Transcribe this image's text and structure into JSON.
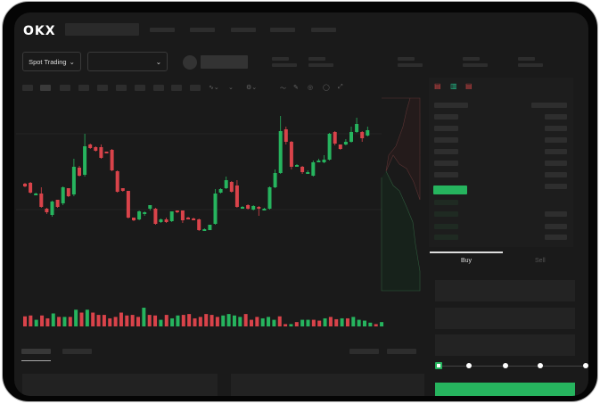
{
  "header": {
    "logo": "OKX"
  },
  "toolbar": {
    "market_select_label": "Spot Trading"
  },
  "trade_panel": {
    "tabs": [
      {
        "label": "Buy",
        "active": true
      },
      {
        "label": "Sell",
        "active": false
      }
    ],
    "leverage_steps": 5,
    "selected_step": 0
  },
  "colors": {
    "up": "#26b45e",
    "down": "#d9434a",
    "background": "#1a1a1a",
    "placeholder": "#2d2d2d"
  },
  "icons": [
    "chevron-down-icon",
    "depth-view-icon",
    "buy-orders-icon",
    "sell-orders-icon",
    "draw-line-icon",
    "pencil-icon",
    "indicator-icon",
    "settings-icon",
    "fullscreen-icon"
  ],
  "chart_data": {
    "type": "candlestick",
    "ohlc": [
      [
        96,
        93,
        97,
        92
      ],
      [
        97,
        86,
        98,
        85
      ],
      [
        85,
        85,
        86,
        84
      ],
      [
        85,
        70,
        92,
        69
      ],
      [
        68,
        64,
        69,
        62
      ],
      [
        61,
        76,
        77,
        59
      ],
      [
        78,
        70,
        78,
        69
      ],
      [
        74,
        92,
        93,
        72
      ],
      [
        91,
        82,
        91,
        81
      ],
      [
        84,
        115,
        124,
        82
      ],
      [
        114,
        105,
        116,
        104
      ],
      [
        106,
        138,
        152,
        104
      ],
      [
        140,
        136,
        141,
        135
      ],
      [
        137,
        133,
        138,
        132
      ],
      [
        137,
        125,
        140,
        124
      ],
      [
        132,
        131,
        132,
        131
      ],
      [
        134,
        111,
        135,
        110
      ],
      [
        110,
        87,
        111,
        86
      ],
      [
        91,
        88,
        91,
        87
      ],
      [
        88,
        58,
        88,
        57
      ],
      [
        58,
        55,
        58,
        54
      ],
      [
        56,
        65,
        66,
        55
      ],
      [
        63,
        64,
        65,
        60
      ],
      [
        68,
        72,
        72,
        66
      ],
      [
        68,
        51,
        69,
        50
      ],
      [
        53,
        56,
        57,
        52
      ],
      [
        56,
        53,
        58,
        52
      ],
      [
        54,
        65,
        65,
        53
      ],
      [
        66,
        64,
        66,
        63
      ],
      [
        66,
        55,
        66,
        52
      ],
      [
        58,
        57,
        59,
        56
      ],
      [
        57,
        56,
        58,
        55
      ],
      [
        56,
        44,
        57,
        43
      ],
      [
        45,
        45,
        46,
        44
      ],
      [
        44,
        50,
        45,
        44
      ],
      [
        51,
        85,
        90,
        50
      ],
      [
        86,
        90,
        91,
        85
      ],
      [
        91,
        100,
        104,
        90
      ],
      [
        98,
        87,
        99,
        86
      ],
      [
        94,
        70,
        100,
        69
      ],
      [
        69,
        70,
        71,
        68
      ],
      [
        72,
        68,
        73,
        67
      ],
      [
        67,
        71,
        72,
        66
      ],
      [
        70,
        69,
        71,
        60
      ],
      [
        68,
        68,
        69,
        67
      ],
      [
        68,
        92,
        93,
        67
      ],
      [
        92,
        108,
        112,
        91
      ],
      [
        108,
        155,
        172,
        107
      ],
      [
        157,
        143,
        160,
        140
      ],
      [
        143,
        115,
        144,
        112
      ],
      [
        117,
        117,
        118,
        116
      ],
      [
        115,
        109,
        116,
        107
      ],
      [
        109,
        109,
        111,
        108
      ],
      [
        105,
        120,
        122,
        104
      ],
      [
        122,
        122,
        124,
        121
      ],
      [
        120,
        123,
        128,
        119
      ],
      [
        123,
        152,
        153,
        122
      ],
      [
        154,
        141,
        155,
        139
      ],
      [
        140,
        135,
        140,
        134
      ],
      [
        140,
        143,
        146,
        139
      ],
      [
        143,
        154,
        160,
        142
      ],
      [
        154,
        163,
        170,
        153
      ],
      [
        154,
        147,
        155,
        143
      ],
      [
        150,
        156,
        160,
        149
      ]
    ],
    "volume": [
      [
        35,
        "d"
      ],
      [
        38,
        "d"
      ],
      [
        23,
        "u"
      ],
      [
        38,
        "d"
      ],
      [
        28,
        "d"
      ],
      [
        45,
        "u"
      ],
      [
        33,
        "d"
      ],
      [
        33,
        "u"
      ],
      [
        33,
        "d"
      ],
      [
        58,
        "u"
      ],
      [
        48,
        "d"
      ],
      [
        58,
        "u"
      ],
      [
        48,
        "d"
      ],
      [
        40,
        "d"
      ],
      [
        40,
        "d"
      ],
      [
        28,
        "d"
      ],
      [
        33,
        "d"
      ],
      [
        48,
        "d"
      ],
      [
        38,
        "d"
      ],
      [
        40,
        "d"
      ],
      [
        33,
        "d"
      ],
      [
        65,
        "u"
      ],
      [
        40,
        "d"
      ],
      [
        38,
        "d"
      ],
      [
        23,
        "u"
      ],
      [
        40,
        "d"
      ],
      [
        28,
        "u"
      ],
      [
        38,
        "u"
      ],
      [
        40,
        "d"
      ],
      [
        43,
        "d"
      ],
      [
        28,
        "d"
      ],
      [
        33,
        "d"
      ],
      [
        43,
        "d"
      ],
      [
        40,
        "d"
      ],
      [
        33,
        "d"
      ],
      [
        38,
        "u"
      ],
      [
        43,
        "u"
      ],
      [
        38,
        "u"
      ],
      [
        33,
        "u"
      ],
      [
        43,
        "d"
      ],
      [
        23,
        "d"
      ],
      [
        33,
        "d"
      ],
      [
        28,
        "u"
      ],
      [
        33,
        "u"
      ],
      [
        23,
        "u"
      ],
      [
        35,
        "d"
      ],
      [
        8,
        "d"
      ],
      [
        8,
        "u"
      ],
      [
        15,
        "d"
      ],
      [
        23,
        "u"
      ],
      [
        23,
        "u"
      ],
      [
        23,
        "d"
      ],
      [
        20,
        "d"
      ],
      [
        28,
        "u"
      ],
      [
        33,
        "d"
      ],
      [
        25,
        "d"
      ],
      [
        28,
        "u"
      ],
      [
        28,
        "d"
      ],
      [
        33,
        "u"
      ],
      [
        23,
        "u"
      ],
      [
        20,
        "u"
      ],
      [
        13,
        "u"
      ],
      [
        8,
        "d"
      ],
      [
        15,
        "u"
      ]
    ]
  }
}
